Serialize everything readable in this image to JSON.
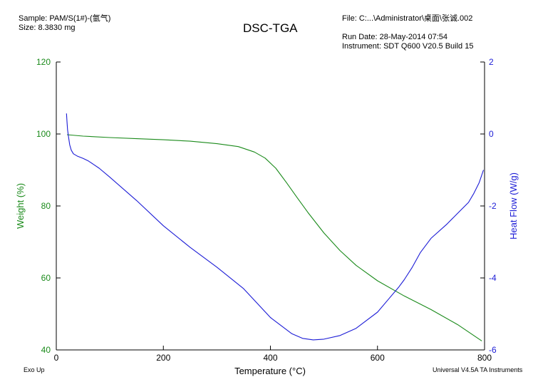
{
  "header": {
    "sample": "Sample: PAM/S(1#)-(氩气)",
    "size": "Size:  8.3830 mg",
    "title": "DSC-TGA",
    "file": "File: C:...\\Administrator\\桌面\\张诚.002",
    "run_date": "Run Date: 28-May-2014 07:54",
    "instrument": "Instrument: SDT Q600 V20.5 Build 15"
  },
  "footer": {
    "left": "Exo Up",
    "right": "Universal V4.5A TA Instruments"
  },
  "colors": {
    "weight": "#1a8a1a",
    "heat_flow": "#1c1cd6",
    "axis": "#000000"
  },
  "chart_data": {
    "type": "line",
    "title": "DSC-TGA",
    "xlabel": "Temperature (°C)",
    "ylabel": "Weight (%)",
    "y2label": "Heat Flow (W/g)",
    "xlim": [
      0,
      800
    ],
    "ylim": [
      40,
      120
    ],
    "y2lim": [
      -6,
      2
    ],
    "x_ticks": [
      "0",
      "200",
      "400",
      "600",
      "800"
    ],
    "y_ticks": [
      "40",
      "60",
      "80",
      "100",
      "120"
    ],
    "y2_ticks": [
      "-6",
      "-4",
      "-2",
      "0",
      "2"
    ],
    "grid": false,
    "series": [
      {
        "name": "Weight (%)",
        "axis": "left",
        "x": [
          20,
          50,
          100,
          150,
          200,
          250,
          300,
          340,
          370,
          390,
          410,
          430,
          450,
          470,
          500,
          530,
          560,
          600,
          650,
          700,
          750,
          795
        ],
        "y": [
          99.8,
          99.4,
          99.0,
          98.7,
          98.4,
          98.0,
          97.3,
          96.5,
          95.0,
          93.3,
          90.5,
          86.5,
          82.3,
          78.2,
          72.5,
          67.6,
          63.5,
          59.2,
          55.0,
          51.2,
          47.0,
          42.5
        ]
      },
      {
        "name": "Heat Flow (W/g)",
        "axis": "right",
        "x": [
          19,
          20,
          21,
          23,
          25,
          28,
          32,
          40,
          50,
          60,
          70,
          80,
          100,
          150,
          200,
          250,
          300,
          350,
          400,
          440,
          460,
          480,
          500,
          530,
          560,
          600,
          620,
          640,
          650,
          665,
          680,
          700,
          730,
          750,
          770,
          780,
          790,
          798
        ],
        "y": [
          0.57,
          0.35,
          0.12,
          -0.1,
          -0.3,
          -0.45,
          -0.55,
          -0.62,
          -0.68,
          -0.75,
          -0.85,
          -0.95,
          -1.2,
          -1.85,
          -2.55,
          -3.15,
          -3.7,
          -4.3,
          -5.1,
          -5.55,
          -5.68,
          -5.72,
          -5.7,
          -5.6,
          -5.4,
          -4.95,
          -4.6,
          -4.25,
          -4.05,
          -3.7,
          -3.3,
          -2.9,
          -2.5,
          -2.2,
          -1.9,
          -1.65,
          -1.35,
          -1.0
        ]
      }
    ]
  }
}
